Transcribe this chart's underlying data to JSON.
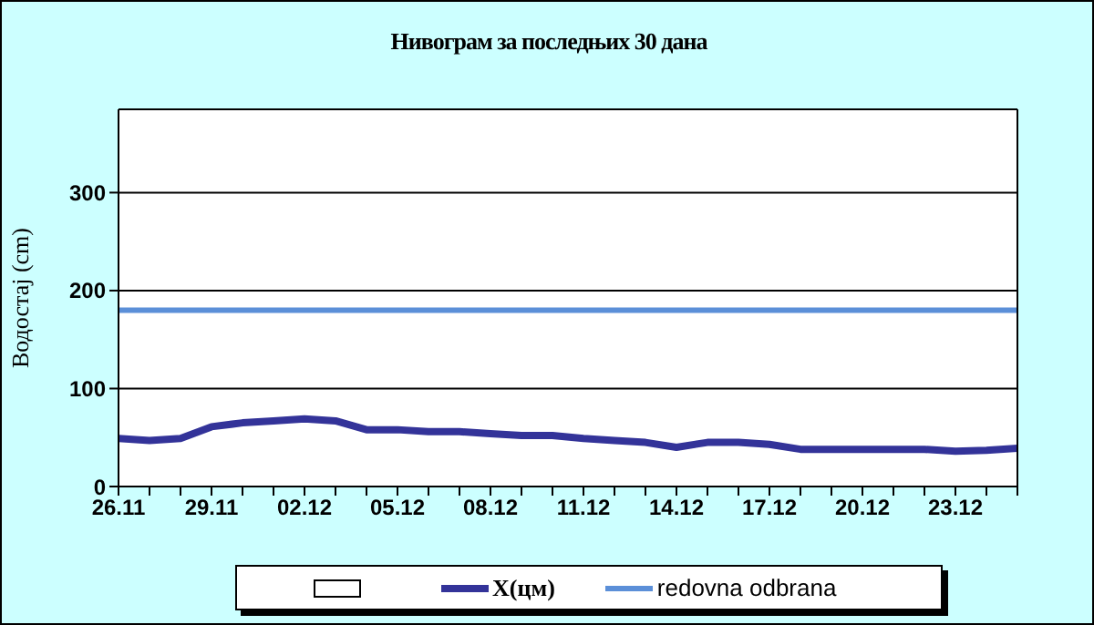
{
  "chart_data": {
    "type": "line",
    "title": "Нивограм за последњих 30 дана",
    "ylabel": "Водостај (cm)",
    "categories": [
      "26.11",
      null,
      null,
      "29.11",
      null,
      null,
      "02.12",
      null,
      null,
      "05.12",
      null,
      null,
      "08.12",
      null,
      null,
      "11.12",
      null,
      null,
      "14.12",
      null,
      null,
      "17.12",
      null,
      null,
      "20.12",
      null,
      null,
      "23.12",
      null,
      null
    ],
    "series": [
      {
        "name": "X(цм)",
        "color": "#333399",
        "values": [
          49,
          47,
          49,
          61,
          65,
          67,
          69,
          67,
          58,
          58,
          56,
          56,
          54,
          52,
          52,
          49,
          47,
          45,
          40,
          45,
          45,
          43,
          38,
          38,
          38,
          38,
          38,
          36,
          37,
          39
        ]
      }
    ],
    "ref_lines": [
      {
        "axis": "y",
        "value": 180,
        "label": "redovna odbrana",
        "color": "#5b8fd8"
      }
    ],
    "ylim": [
      0,
      385
    ],
    "yticks": [
      0,
      100,
      200,
      300
    ],
    "grid": "y",
    "legend": "bottom",
    "marker": "none",
    "line_style": "solid"
  }
}
